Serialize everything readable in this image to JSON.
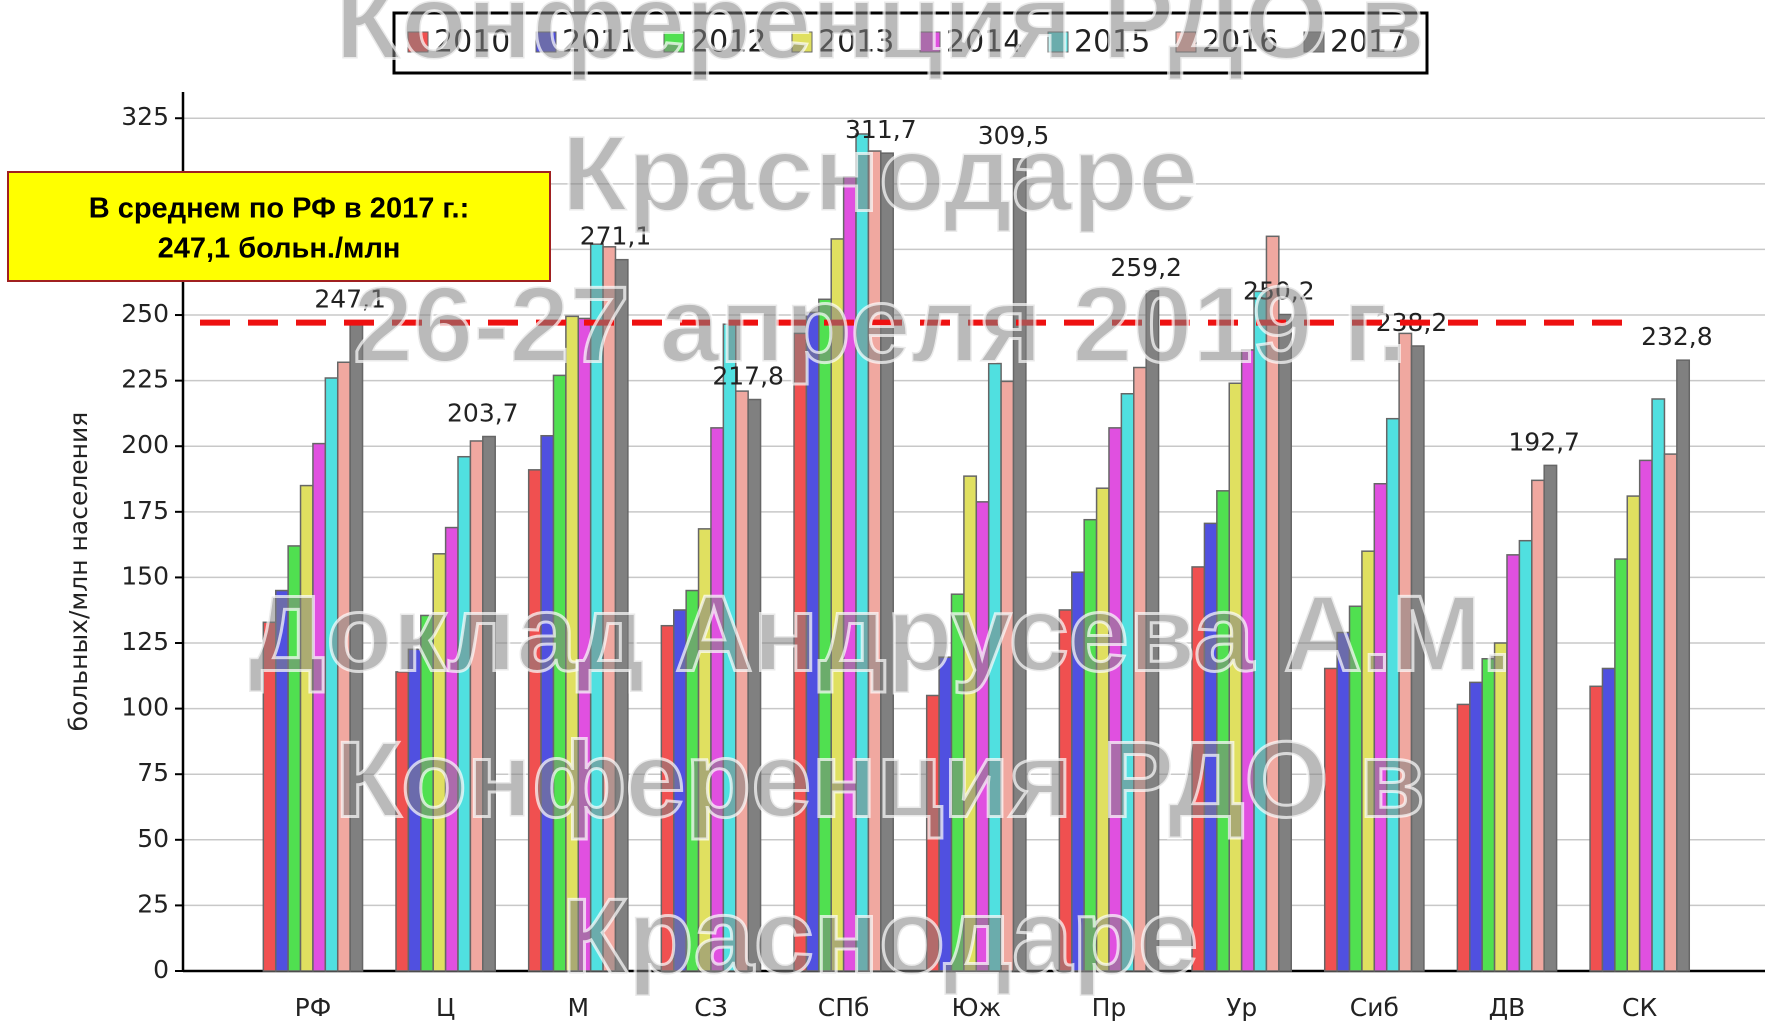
{
  "chart_data": {
    "type": "bar",
    "ylabel": "больных/млн населения",
    "categories": [
      "РФ",
      "Ц",
      "М",
      "СЗ",
      "СПб",
      "Юж",
      "Пр",
      "Ур",
      "Сиб",
      "ДВ",
      "СК"
    ],
    "series": [
      {
        "name": "2010",
        "color": "#f05050",
        "values": [
          132.9,
          114,
          191,
          131.6,
          243,
          105,
          137.6,
          154,
          115.3,
          101.6,
          108.5
        ]
      },
      {
        "name": "2011",
        "color": "#5050e0",
        "values": [
          145,
          122.6,
          204,
          137.6,
          251,
          119.6,
          152,
          170.6,
          129,
          110,
          115.3
        ]
      },
      {
        "name": "2012",
        "color": "#50e050",
        "values": [
          162,
          135.5,
          227,
          145,
          256,
          143.6,
          172,
          183,
          139,
          119,
          157
        ]
      },
      {
        "name": "2013",
        "color": "#e0e060",
        "values": [
          185,
          159,
          249.5,
          168.5,
          279,
          188.6,
          184,
          224,
          160,
          125,
          181
        ]
      },
      {
        "name": "2014",
        "color": "#e050e0",
        "values": [
          201,
          169,
          248.7,
          207,
          302.7,
          178.8,
          207,
          236.7,
          185.7,
          158.6,
          194.6
        ]
      },
      {
        "name": "2015",
        "color": "#50e0e0",
        "values": [
          226,
          196,
          277,
          246.5,
          319,
          231.5,
          220,
          259,
          210.5,
          164,
          218
        ]
      },
      {
        "name": "2016",
        "color": "#f0a8a0",
        "values": [
          232,
          202,
          276,
          221,
          312.5,
          224.7,
          230,
          280,
          243,
          187,
          197
        ]
      },
      {
        "name": "2017",
        "color": "#808080",
        "values": [
          247.1,
          203.7,
          271.1,
          217.8,
          311.7,
          309.5,
          259.2,
          250.2,
          238.2,
          192.7,
          232.8
        ],
        "value_labels": [
          "247,1",
          "203,7",
          "271,1",
          "217,8",
          "311,7",
          "309,5",
          "259,2",
          "250,2",
          "238,2",
          "192,7",
          "232,8"
        ]
      }
    ],
    "ylim": [
      0,
      335
    ],
    "yticks": [
      0,
      25,
      50,
      75,
      100,
      125,
      150,
      175,
      200,
      225,
      250,
      275,
      300,
      325
    ],
    "grid": true,
    "reference_line": 247.1,
    "reference_color": "#ee1111",
    "annotation": [
      "В среднем по РФ в 2017 г.:",
      "247,1 больн./млн"
    ],
    "watermark": [
      "Конференция РДО в",
      "Краснодаре",
      "26-27 апреля 2019 г.",
      "Доклад Андрусева А.М.",
      "Конференция РДО в",
      "Краснодаре"
    ]
  }
}
